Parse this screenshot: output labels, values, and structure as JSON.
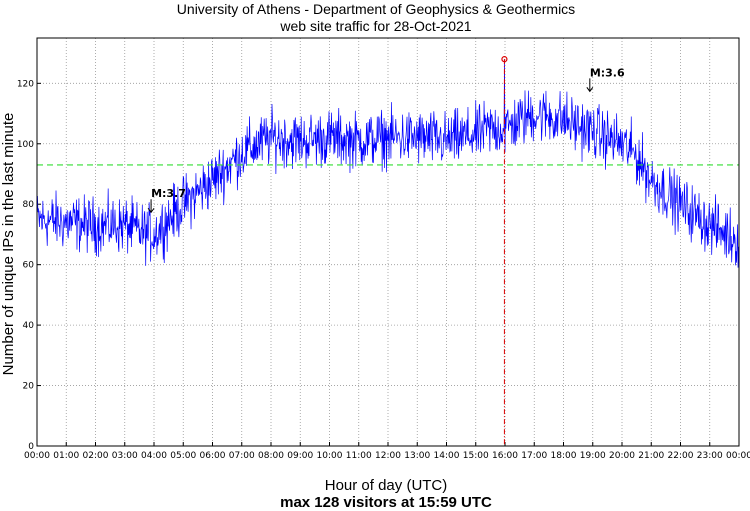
{
  "chart_data": {
    "type": "line",
    "title": "University of Athens - Department of Geophysics & Geothermics",
    "subtitle": "web site traffic for 28-Oct-2021",
    "xlabel": "Hour of day (UTC)",
    "ylabel": "Number of unique IPs in the last minute",
    "footer": "max 128 visitors at 15:59 UTC",
    "xlim": [
      0,
      24
    ],
    "ylim": [
      0,
      135
    ],
    "x_ticks": [
      "00:00",
      "01:00",
      "02:00",
      "03:00",
      "04:00",
      "05:00",
      "06:00",
      "07:00",
      "08:00",
      "09:00",
      "10:00",
      "11:00",
      "12:00",
      "13:00",
      "14:00",
      "15:00",
      "16:00",
      "17:00",
      "18:00",
      "19:00",
      "20:00",
      "21:00",
      "22:00",
      "23:00",
      "00:00"
    ],
    "y_ticks": [
      "0",
      "20",
      "40",
      "60",
      "80",
      "100",
      "120"
    ],
    "grid": true,
    "average_line": 93,
    "max_point": {
      "x": 15.98,
      "y": 128
    },
    "annotations": [
      {
        "label": "M:3.7",
        "x": 3.9,
        "y": 79
      },
      {
        "label": "M:3.6",
        "x": 18.9,
        "y": 119
      }
    ],
    "trend": {
      "x": [
        0,
        1,
        2,
        3,
        3.5,
        4,
        5,
        6,
        7,
        8,
        9,
        10,
        11,
        12,
        13,
        14,
        15,
        15.5,
        16,
        17,
        18,
        19,
        20,
        20.5,
        21,
        22,
        23,
        24
      ],
      "y": [
        75,
        74,
        73,
        73,
        71,
        70,
        80,
        88,
        97,
        102,
        101,
        102,
        101,
        102,
        102,
        101,
        103,
        105,
        105,
        110,
        108,
        104,
        100,
        96,
        88,
        80,
        73,
        68
      ]
    },
    "noise_amplitude": 7,
    "series_color": "#0000ff",
    "average_color": "#33dd33",
    "max_color": "#dd0000"
  }
}
